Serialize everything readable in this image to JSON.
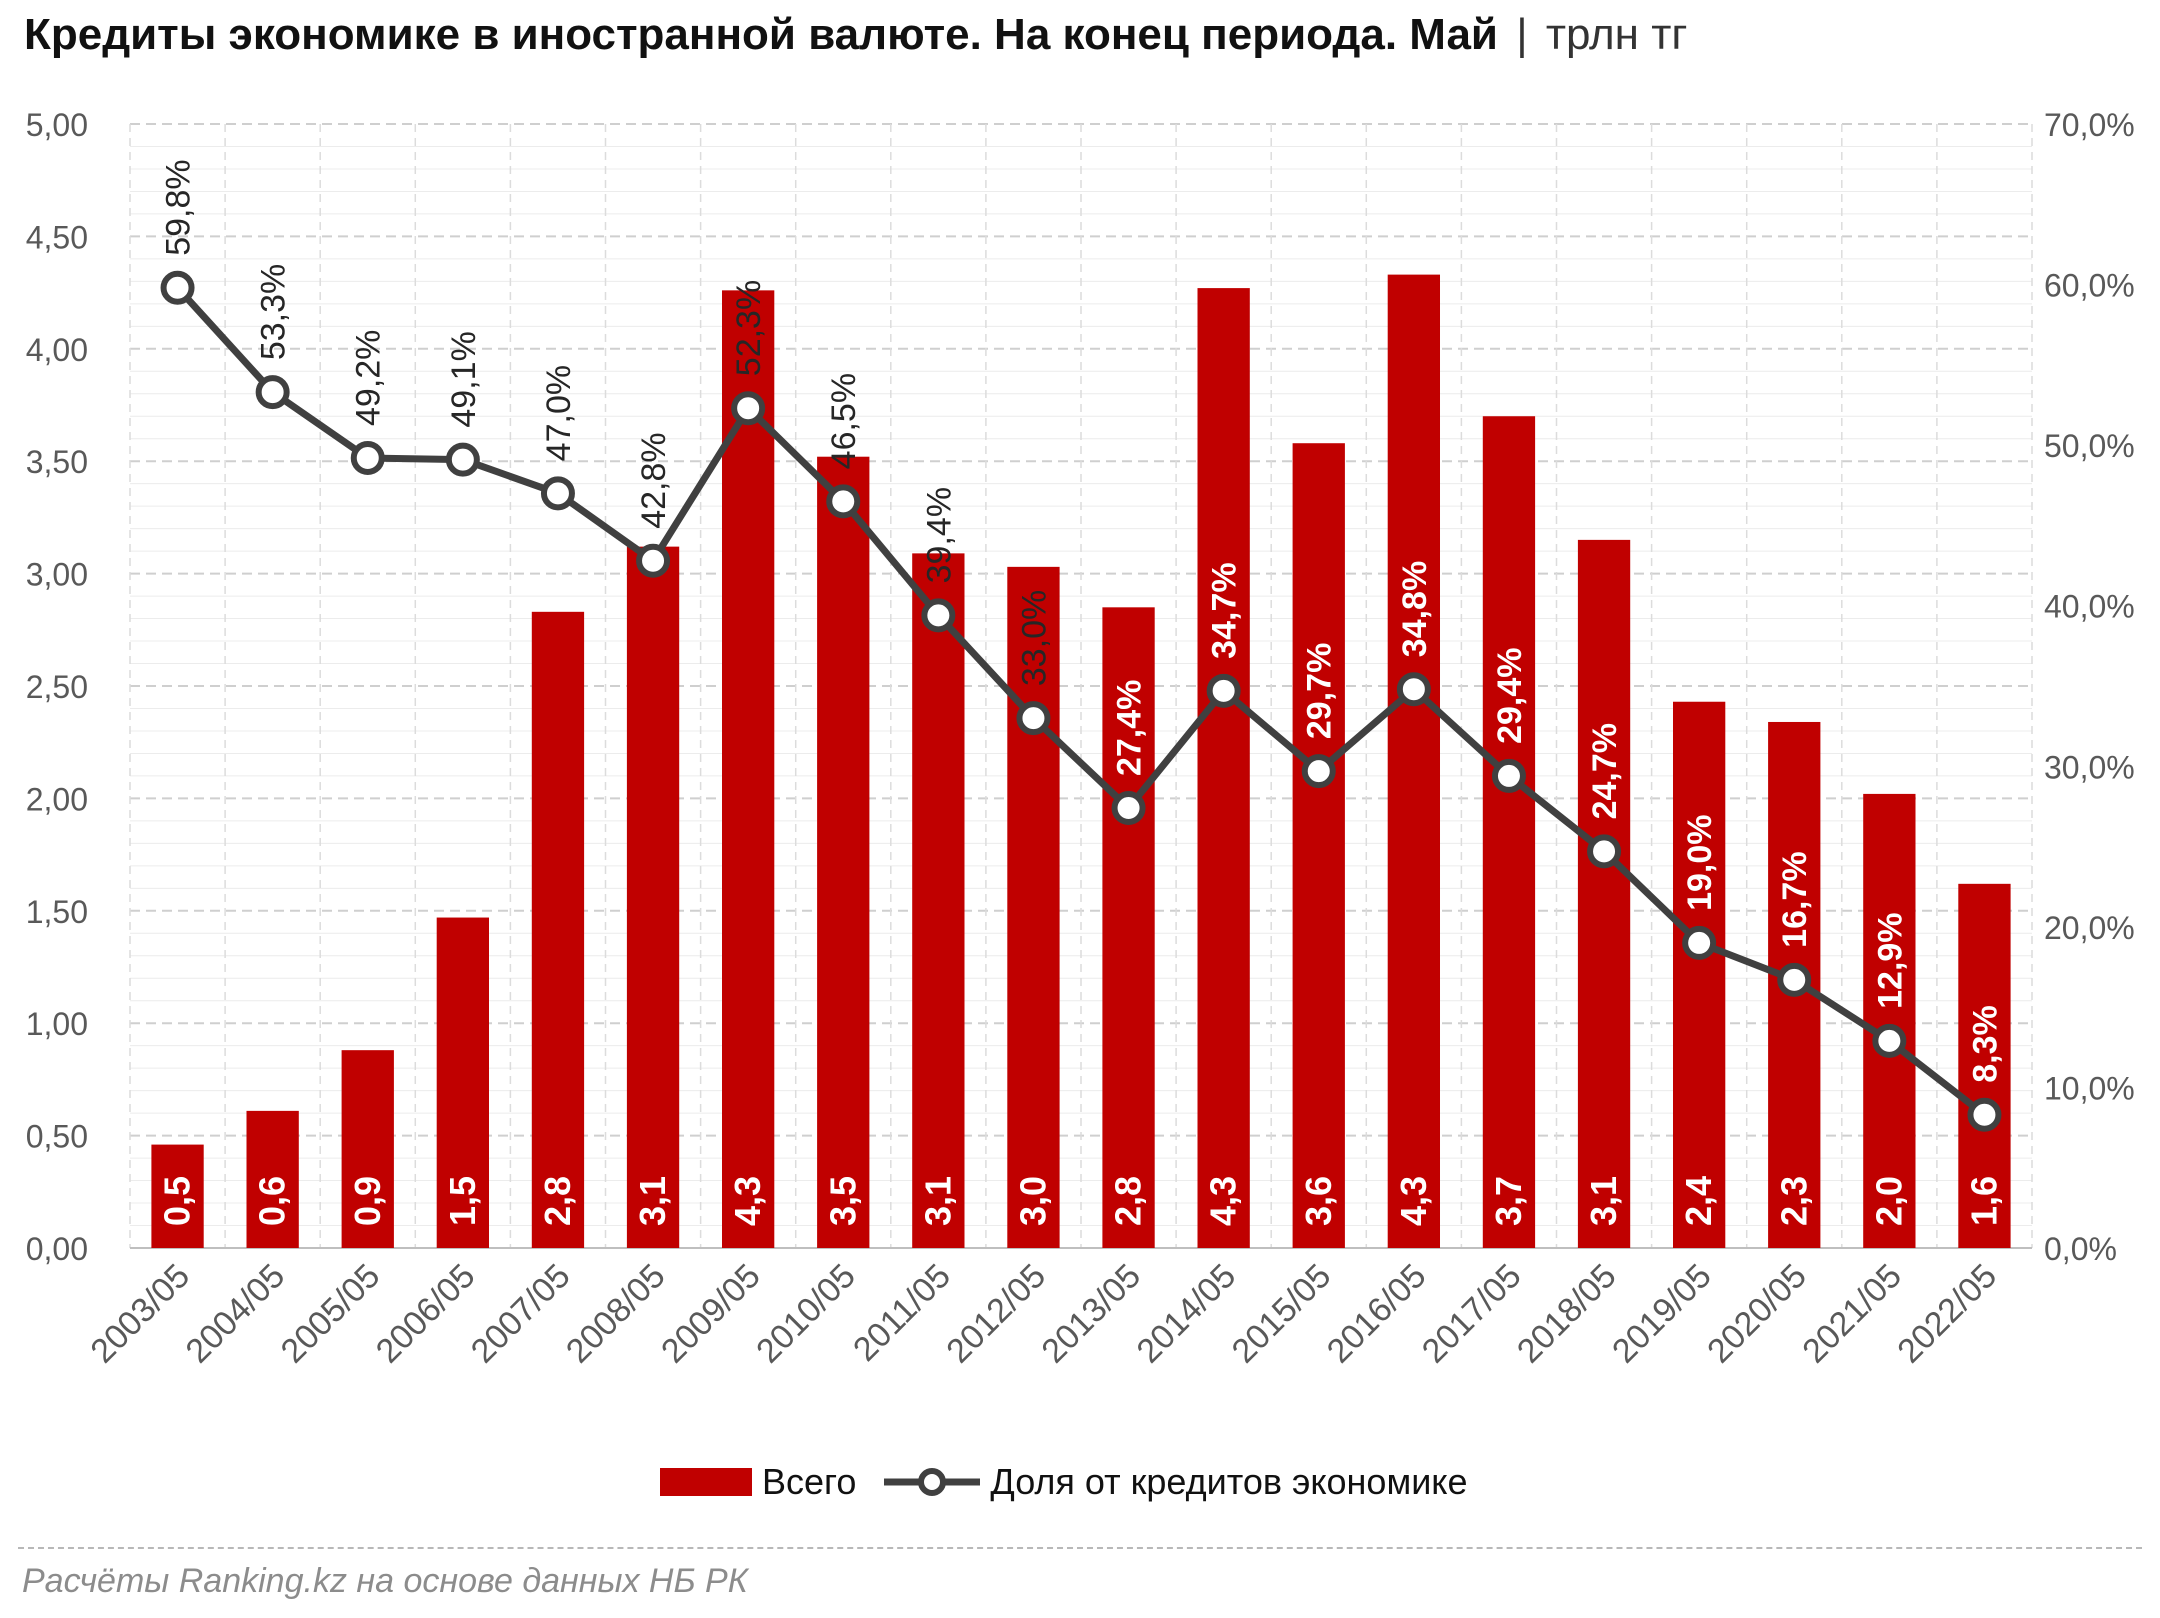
{
  "title": {
    "main": "Кредиты экономике в иностранной валюте. На конец периода. Май",
    "separator": "|",
    "unit": "трлн тг"
  },
  "chart_data": {
    "type": "bar",
    "categories": [
      "2003/05",
      "2004/05",
      "2005/05",
      "2006/05",
      "2007/05",
      "2008/05",
      "2009/05",
      "2010/05",
      "2011/05",
      "2012/05",
      "2013/05",
      "2014/05",
      "2015/05",
      "2016/05",
      "2017/05",
      "2018/05",
      "2019/05",
      "2020/05",
      "2021/05",
      "2022/05"
    ],
    "series": [
      {
        "name": "Всего",
        "type": "bar",
        "axis": "left",
        "color": "#c00000",
        "values": [
          0.46,
          0.61,
          0.88,
          1.47,
          2.83,
          3.12,
          4.26,
          3.52,
          3.09,
          3.03,
          2.85,
          4.27,
          3.58,
          4.33,
          3.7,
          3.15,
          2.43,
          2.34,
          2.02,
          1.62
        ],
        "labels": [
          "0,5",
          "0,6",
          "0,9",
          "1,5",
          "2,8",
          "3,1",
          "4,3",
          "3,5",
          "3,1",
          "3,0",
          "2,8",
          "4,3",
          "3,6",
          "4,3",
          "3,7",
          "3,1",
          "2,4",
          "2,3",
          "2,0",
          "1,6"
        ]
      },
      {
        "name": "Доля от кредитов экономике",
        "type": "line",
        "axis": "right",
        "color": "#404040",
        "values": [
          59.8,
          53.3,
          49.2,
          49.1,
          47.0,
          42.8,
          52.3,
          46.5,
          39.4,
          33.0,
          27.4,
          34.7,
          29.7,
          34.8,
          29.4,
          24.7,
          19.0,
          16.7,
          12.9,
          8.3
        ],
        "labels": [
          "59,8%",
          "53,3%",
          "49,2%",
          "49,1%",
          "47,0%",
          "42,8%",
          "52,3%",
          "46,5%",
          "39,4%",
          "33,0%",
          "27,4%",
          "34,7%",
          "29,7%",
          "34,8%",
          "29,4%",
          "24,7%",
          "19,0%",
          "16,7%",
          "12,9%",
          "8,3%"
        ]
      }
    ],
    "left_axis": {
      "range": [
        0,
        5
      ],
      "ticks": [
        "0,00",
        "0,50",
        "1,00",
        "1,50",
        "2,00",
        "2,50",
        "3,00",
        "3,50",
        "4,00",
        "4,50",
        "5,00"
      ]
    },
    "right_axis": {
      "range": [
        0,
        70
      ],
      "ticks": [
        "0,0%",
        "10,0%",
        "20,0%",
        "30,0%",
        "40,0%",
        "50,0%",
        "60,0%",
        "70,0%"
      ]
    },
    "grid": true,
    "legend_position": "bottom"
  },
  "source": "Расчёты Ranking.kz на основе данных НБ РК"
}
